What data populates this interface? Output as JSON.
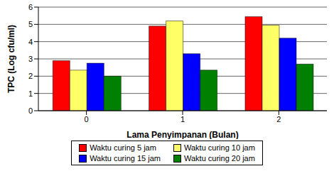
{
  "chart_data": {
    "type": "bar",
    "x_label": "Lama Penyimpanan (Bulan)",
    "y_label": "TPC (Log cfu/ml)",
    "categories": [
      "0",
      "1",
      "2"
    ],
    "series": [
      {
        "name": "Waktu curing 5 jam",
        "color": "#ff0000",
        "values": [
          2.9,
          4.9,
          5.45
        ]
      },
      {
        "name": "Waktu curing 10 jam",
        "color": "#ffff66",
        "values": [
          2.35,
          5.2,
          4.95
        ]
      },
      {
        "name": "Waktu curing 15 jam",
        "color": "#0000ff",
        "values": [
          2.75,
          3.3,
          4.2
        ]
      },
      {
        "name": "Waktu curing 20 jam",
        "color": "#008000",
        "values": [
          2.0,
          2.35,
          2.7
        ]
      }
    ],
    "ylim": [
      0,
      6
    ],
    "yticks": [
      0,
      1,
      2,
      3,
      4,
      5,
      6
    ],
    "grid": true,
    "legend": "bottom"
  }
}
